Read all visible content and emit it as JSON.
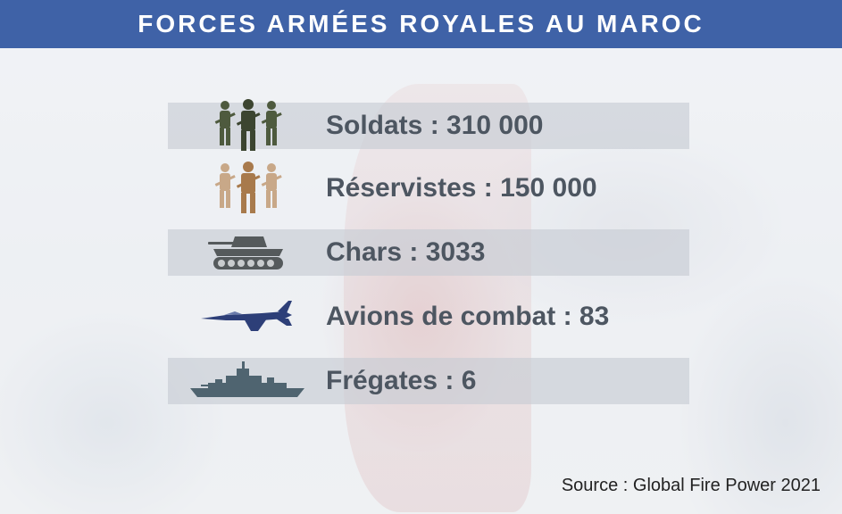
{
  "header": {
    "title": "FORCES ARMÉES ROYALES AU MAROC"
  },
  "colors": {
    "header_bg": "#3f62a7",
    "header_text": "#ffffff",
    "label_text": "#4d5661",
    "soldier_green": "#4e5a3e",
    "reservist_tan": "#b58a5e",
    "tank_gray": "#555a5c",
    "jet_navy": "#2d3f78",
    "frigate_slate": "#4f6470"
  },
  "items": [
    {
      "icon": "soldiers-icon",
      "label": "Soldats : 310 000"
    },
    {
      "icon": "reservists-icon",
      "label": "Réservistes : 150 000"
    },
    {
      "icon": "tank-icon",
      "label": "Chars : 3033"
    },
    {
      "icon": "fighter-jet-icon",
      "label": "Avions de combat : 83"
    },
    {
      "icon": "frigate-icon",
      "label": "Frégates : 6"
    }
  ],
  "source": "Source : Global Fire Power 2021"
}
